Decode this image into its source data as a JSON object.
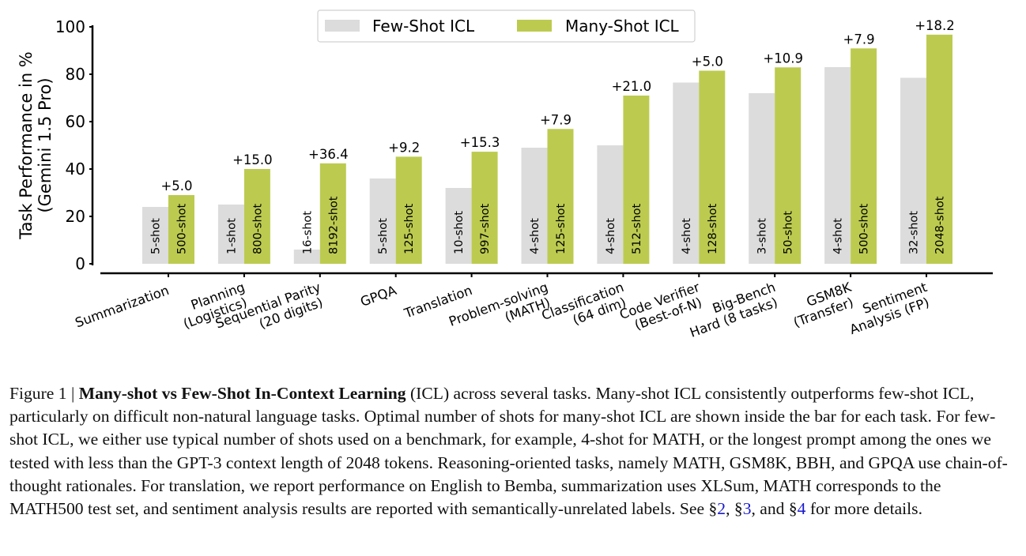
{
  "chart_data": {
    "type": "bar",
    "ylabel": "Task Performance in %\n(Gemini 1.5 Pro)",
    "ylim": [
      0,
      100
    ],
    "yticks": [
      0,
      20,
      40,
      60,
      80,
      100
    ],
    "legend": {
      "position": "top-center"
    },
    "colors": {
      "few_shot": "#dcdcdc",
      "many_shot": "#bccb4f"
    },
    "categories": [
      "Summarization",
      "Planning\n(Logistics)",
      "Sequential Parity\n(20 digits)",
      "GPQA",
      "Translation",
      "Problem-solving\n(MATH)",
      "Classification\n(64 dim)",
      "Code Verifier\n(Best-of-N)",
      "Big-Bench\nHard (8 tasks)",
      "GSM8K\n(Transfer)",
      "Sentiment\nAnalysis (FP)"
    ],
    "series": [
      {
        "name": "Few-Shot ICL",
        "values": [
          24,
          25,
          6,
          36,
          32,
          49,
          50,
          76.5,
          72,
          83,
          78.5
        ],
        "shots": [
          "5-shot",
          "1-shot",
          "16-shot",
          "5-shot",
          "10-shot",
          "4-shot",
          "4-shot",
          "4-shot",
          "3-shot",
          "4-shot",
          "32-shot"
        ]
      },
      {
        "name": "Many-Shot ICL",
        "values": [
          29,
          40,
          42.4,
          45.2,
          47.3,
          56.9,
          71,
          81.5,
          82.9,
          90.9,
          96.7
        ],
        "shots": [
          "500-shot",
          "800-shot",
          "8192-shot",
          "125-shot",
          "997-shot",
          "125-shot",
          "512-shot",
          "128-shot",
          "50-shot",
          "500-shot",
          "2048-shot"
        ]
      }
    ],
    "improvements": [
      "+5.0",
      "+15.0",
      "+36.4",
      "+9.2",
      "+15.3",
      "+7.9",
      "+21.0",
      "+5.0",
      "+10.9",
      "+7.9",
      "+18.2"
    ]
  },
  "caption": {
    "prefix": "Figure 1 | ",
    "bold": "Many-shot vs Few-Shot In-Context Learning",
    "text1": " (ICL) across several tasks. Many-shot ICL consistently outperforms few-shot ICL, particularly on difficult non-natural language tasks. Optimal number of shots for many-shot ICL are shown inside the bar for each task. For few-shot ICL, we either use typical number of shots used on a benchmark, for example, 4-shot for MATH, or the longest prompt among the ones we tested with less than the GPT-3 context length of 2048 tokens. Reasoning-oriented tasks, namely MATH, GSM8K, BBH, and GPQA use chain-of-thought rationales. For translation, we report performance on English to Bemba, summarization uses XLSum, MATH corresponds to the MATH500 test set, and sentiment analysis results are reported with semantically-unrelated labels. See §",
    "ref1": "2",
    "sep1": ", §",
    "ref2": "3",
    "sep2": ", and §",
    "ref3": "4",
    "text2": " for more details."
  }
}
